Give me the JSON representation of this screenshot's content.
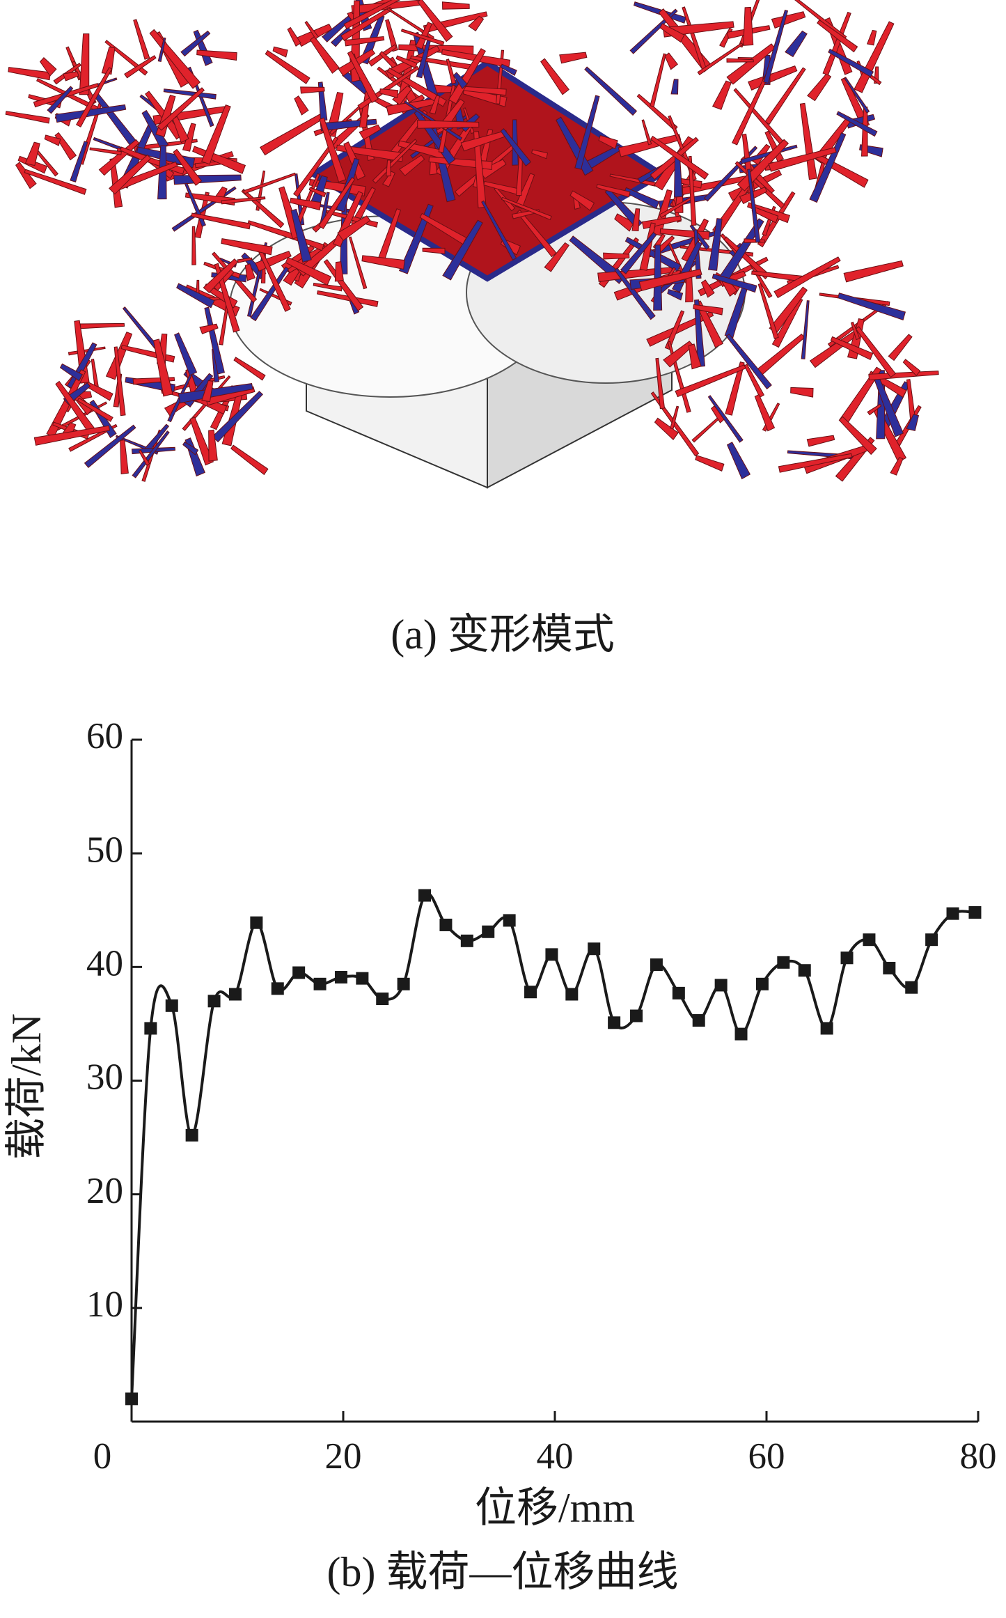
{
  "panel_a": {
    "caption": "(a) 变形模式"
  },
  "chart_data": {
    "type": "line",
    "caption": "(b) 载荷—位移曲线",
    "x_label": "位移/mm",
    "y_label": "载荷/kN",
    "x": [
      0,
      1.8,
      3.8,
      5.7,
      7.8,
      9.8,
      11.8,
      13.8,
      15.8,
      17.8,
      19.8,
      21.8,
      23.7,
      25.7,
      27.7,
      29.7,
      31.7,
      33.7,
      35.7,
      37.7,
      39.7,
      41.6,
      43.7,
      45.6,
      47.7,
      49.6,
      51.7,
      53.6,
      55.7,
      57.6,
      59.6,
      61.6,
      63.6,
      65.7,
      67.6,
      69.7,
      71.6,
      73.7,
      75.6,
      77.6,
      79.7
    ],
    "values": [
      2,
      34.6,
      36.6,
      25.2,
      37,
      37.6,
      43.9,
      38.1,
      39.5,
      38.5,
      39.1,
      39,
      37.2,
      38.5,
      46.3,
      43.7,
      42.3,
      43.1,
      44.1,
      37.8,
      41.1,
      37.6,
      41.6,
      35.1,
      35.7,
      40.2,
      37.7,
      35.3,
      38.4,
      34.1,
      38.5,
      40.4,
      39.7,
      34.6,
      40.8,
      42.4,
      39.9,
      38.2,
      42.4,
      44.7,
      44.8
    ],
    "color": "#1a1a1a",
    "xlim": [
      0,
      80
    ],
    "ylim": [
      0,
      60
    ],
    "xticks": [
      0,
      20,
      40,
      60,
      80
    ],
    "yticks": [
      10,
      20,
      30,
      40,
      50,
      60
    ]
  }
}
